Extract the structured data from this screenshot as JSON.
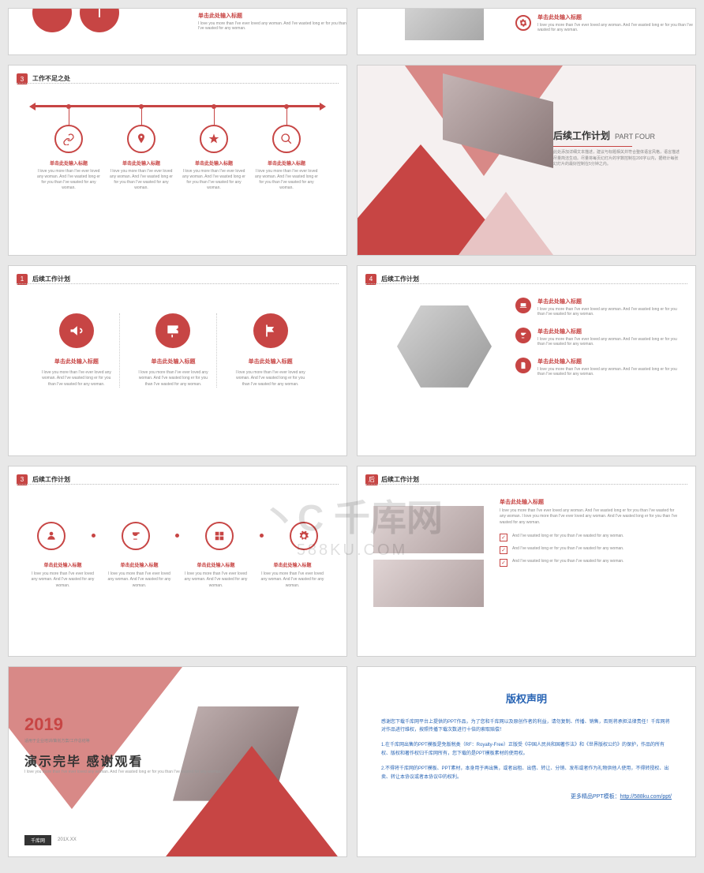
{
  "colors": {
    "primary": "#c74544",
    "secondary": "#d88987",
    "text": "#333",
    "muted": "#888",
    "link": "#2864b4",
    "bg": "#e8e8e8"
  },
  "watermark": {
    "logo": "千库网",
    "url": "588KU.COM"
  },
  "slides": {
    "s1": {
      "heading": "单击此处输入标题",
      "body": "I love you more than I've ever loved any woman. And I've wasted long er for you than I've wasted for any woman."
    },
    "s2": {
      "heading": "单击此处输入标题",
      "body": "I love you more than I've ever loved any woman. And I've wasted long er for you than I've wasted for any woman."
    },
    "s3": {
      "badge": "3",
      "title": "工作不足之处",
      "items": [
        {
          "icon": "link",
          "h": "单击此处输入标题",
          "b": "I love you more than I've ever loved any woman. And I've wasted long er for you than I've wasted for any woman."
        },
        {
          "icon": "pin",
          "h": "单击此处输入标题",
          "b": "I love you more than I've ever loved any woman. And I've wasted long er for you than I've wasted for any woman."
        },
        {
          "icon": "star",
          "h": "单击此处输入标题",
          "b": "I love you more than I've ever loved any woman. And I've wasted long er for you than I've wasted for any woman."
        },
        {
          "icon": "search",
          "h": "单击此处输入标题",
          "b": "I love you more than I've ever loved any woman. And I've wasted long er for you than I've wasted for any woman."
        }
      ]
    },
    "s4": {
      "title": "后续工作计划",
      "en": "PART FOUR",
      "body": "此处添加详细文本描述，建议与标题相关并符合整体语言风格，语言描述尽量简洁生动。尽量将每页幻灯片的字数控制在200字以内，据统计每张幻灯片的最好控制在5分钟之内。"
    },
    "s5": {
      "badge": "1",
      "title": "后续工作计划",
      "cols": [
        {
          "icon": "horn",
          "h": "单击此处输入标题",
          "b": "I love you more than I've ever loved any woman. And I've wasted long er for you than I've wasted for any woman."
        },
        {
          "icon": "sign",
          "h": "单击此处输入标题",
          "b": "I love you more than I've ever loved any woman. And I've wasted long er for you than I've wasted for any woman."
        },
        {
          "icon": "flag",
          "h": "单击此处输入标题",
          "b": "I love you more than I've ever loved any woman. And I've wasted long er for you than I've wasted for any woman."
        }
      ]
    },
    "s6": {
      "badge": "4",
      "title": "后续工作计划",
      "list": [
        {
          "icon": "laptop",
          "h": "单击此处输入标题",
          "b": "I love you more than I've ever loved any woman. And I've wasted long er for you than I've wasted for any woman."
        },
        {
          "icon": "cup",
          "h": "单击此处输入标题",
          "b": "I love you more than I've ever loved any woman. And I've wasted long er for you than I've wasted for any woman."
        },
        {
          "icon": "doc",
          "h": "单击此处输入标题",
          "b": "I love you more than I've ever loved any woman. And I've wasted long er for you than I've wasted for any woman."
        }
      ]
    },
    "s7": {
      "badge": "3",
      "title": "后续工作计划",
      "items": [
        {
          "icon": "user",
          "h": "单击此处输入标题",
          "b": "I love you more than I've ever loved any woman. And I've wasted for any woman."
        },
        {
          "icon": "cup",
          "h": "单击此处输入标题",
          "b": "I love you more than I've ever loved any woman. And I've wasted for any woman."
        },
        {
          "icon": "grid",
          "h": "单击此处输入标题",
          "b": "I love you more than I've ever loved any woman. And I've wasted for any woman."
        },
        {
          "icon": "gear",
          "h": "单击此处输入标题",
          "b": "I love you more than I've ever loved any woman. And I've wasted for any woman."
        }
      ]
    },
    "s8": {
      "badge": "后",
      "title": "后续工作计划",
      "heading": "单击此处输入标题",
      "body": "I love you more than I've ever loved any woman. And I've wasted long er for you than I've wasted for any woman. I love you more than I've ever loved any woman. And I've wasted long er for you than I've wasted for any woman.",
      "checks": [
        "And I've wasted long er for you than I've wasted for any woman.",
        "And I've wasted long er for you than I've wasted for any woman.",
        "And I've wasted long er for you than I've wasted for any woman."
      ]
    },
    "s9": {
      "year": "2019",
      "sub": "适用于企业培训/策划方案/工作总结等",
      "main": "演示完毕 感谢观看",
      "en": "I love you more than I've ever loved any woman. And I've wasted long er for you than I've wasted for any woman.",
      "footer_a": "千库网",
      "footer_b": "201X.XX"
    },
    "s10": {
      "title": "版权声明",
      "p1": "感谢您下载千库网平台上提供的PPT作品，为了您和千库网以及原创作者的利益，请勿复制、传播、销售，否则将承担法律责任！千库网将对作品进行维权，按照传播下载次数进行十倍的索取赔偿！",
      "p2": "1.在千库网出售的PPT模板是免版税类（RF：Royalty-Free）正版受《中国人民共和国著作法》和《世界版权公约》的保护，作品的所有权、版权和著作权归千库网所有，您下载的是PPT模板素材的使用权。",
      "p3": "2.不得将千库网的PPT模板、PPT素材，本身用于再出售，或者出租、出借、转让、分销、发布或者作为礼物供他人使用，不得转授权、出卖、转让本协议或者本协议中的权利。",
      "more_label": "更多精品PPT模板：",
      "more_url": "http://588ku.com/ppt/"
    }
  }
}
